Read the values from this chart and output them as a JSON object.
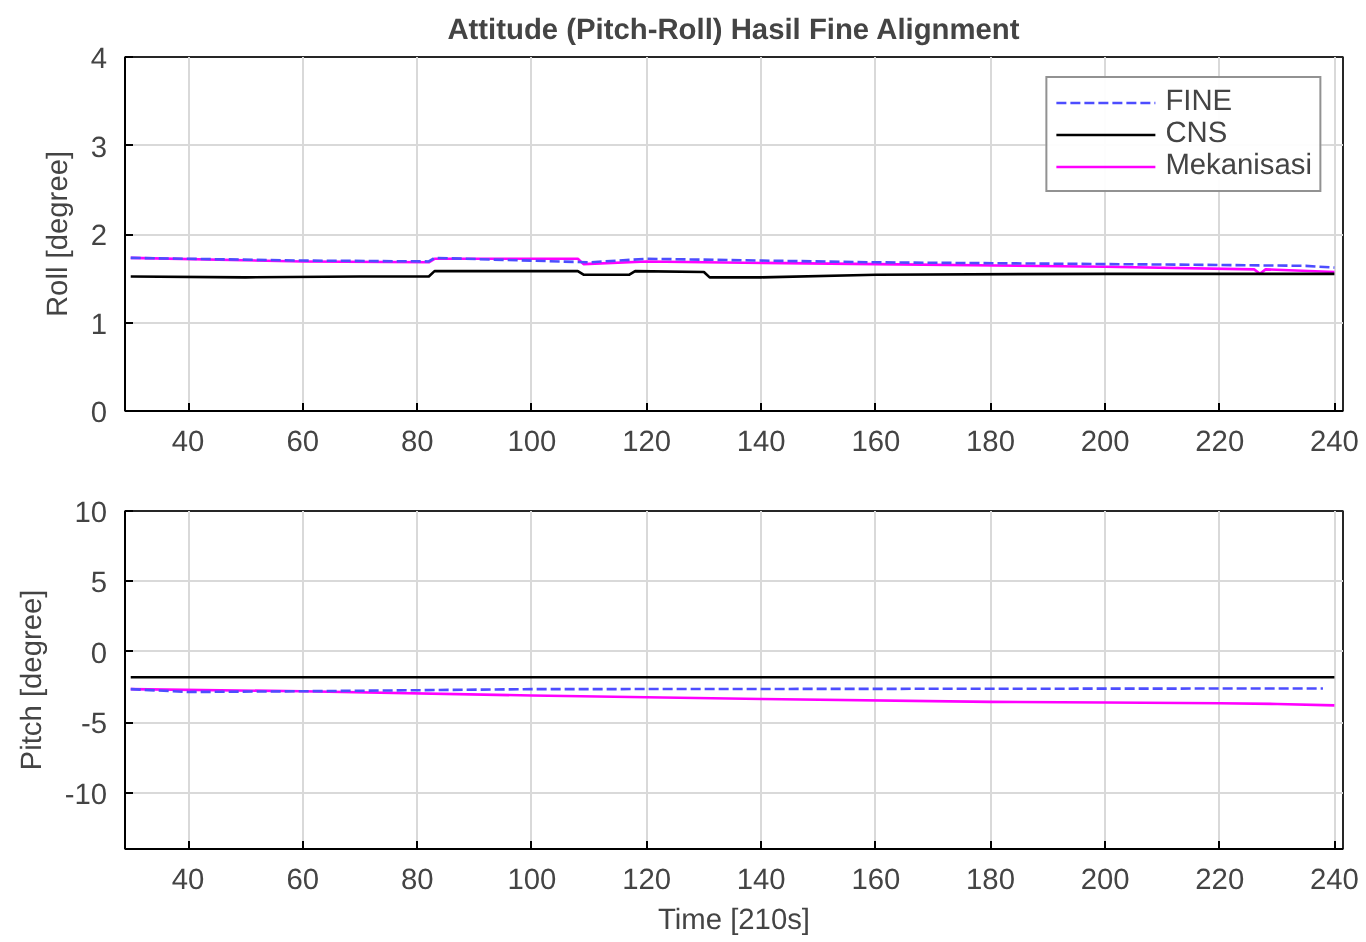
{
  "chart_data": [
    {
      "type": "line",
      "title": "Attitude (Pitch-Roll) Hasil Fine Alignment",
      "ylabel": "Roll [degree]",
      "xlim": [
        29,
        241.5
      ],
      "xticks": [
        40,
        60,
        80,
        100,
        120,
        140,
        160,
        180,
        200,
        220,
        240
      ],
      "ylim": [
        0,
        4
      ],
      "yticks": [
        0,
        1,
        2,
        3,
        4
      ],
      "grid": true,
      "legend": "top right",
      "series": [
        {
          "name": "FINE",
          "color": "#4d4dff",
          "line_style": "dashed",
          "x": [
            30,
            60,
            82,
            83,
            110,
            120,
            160,
            200,
            220,
            235,
            240
          ],
          "values": [
            1.73,
            1.7,
            1.69,
            1.73,
            1.68,
            1.72,
            1.68,
            1.66,
            1.65,
            1.64,
            1.62
          ]
        },
        {
          "name": "CNS",
          "color": "#000000",
          "line_style": "solid",
          "x": [
            30,
            50,
            70,
            82,
            83,
            108,
            109,
            117,
            118,
            130,
            131,
            140,
            160,
            200,
            240
          ],
          "values": [
            1.52,
            1.51,
            1.52,
            1.52,
            1.58,
            1.58,
            1.54,
            1.54,
            1.58,
            1.57,
            1.51,
            1.51,
            1.54,
            1.55,
            1.55
          ]
        },
        {
          "name": "Mekanisasi",
          "color": "#ff00ff",
          "line_style": "solid",
          "x": [
            30,
            60,
            82,
            83,
            108,
            109,
            120,
            130,
            160,
            200,
            226,
            227,
            228,
            240
          ],
          "values": [
            1.73,
            1.69,
            1.68,
            1.72,
            1.72,
            1.66,
            1.69,
            1.68,
            1.66,
            1.63,
            1.6,
            1.55,
            1.6,
            1.57
          ]
        }
      ]
    },
    {
      "type": "line",
      "xlabel": "Time [210s]",
      "ylabel": "Pitch [degree]",
      "xlim": [
        29,
        241.5
      ],
      "xticks": [
        40,
        60,
        80,
        100,
        120,
        140,
        160,
        180,
        200,
        220,
        240
      ],
      "ylim": [
        -14,
        10
      ],
      "yticks": [
        {
          "value": -10,
          "label": "-10"
        },
        {
          "value": -5,
          "label": "-5"
        },
        0,
        5,
        10
      ],
      "grid": true,
      "series": [
        {
          "color": "#4d4dff",
          "line_style": "dashed",
          "x": [
            30,
            40,
            60,
            100,
            238
          ],
          "values": [
            -2.65,
            -2.85,
            -2.8,
            -2.65,
            -2.6
          ]
        },
        {
          "color": "#000000",
          "line_style": "solid",
          "x": [
            30,
            240
          ],
          "values": [
            -1.8,
            -1.8
          ]
        },
        {
          "color": "#ff00ff",
          "line_style": "solid",
          "x": [
            30,
            60,
            100,
            140,
            180,
            200,
            220,
            230,
            240
          ],
          "values": [
            -2.65,
            -2.8,
            -3.1,
            -3.35,
            -3.55,
            -3.6,
            -3.65,
            -3.7,
            -3.8
          ]
        }
      ]
    }
  ]
}
